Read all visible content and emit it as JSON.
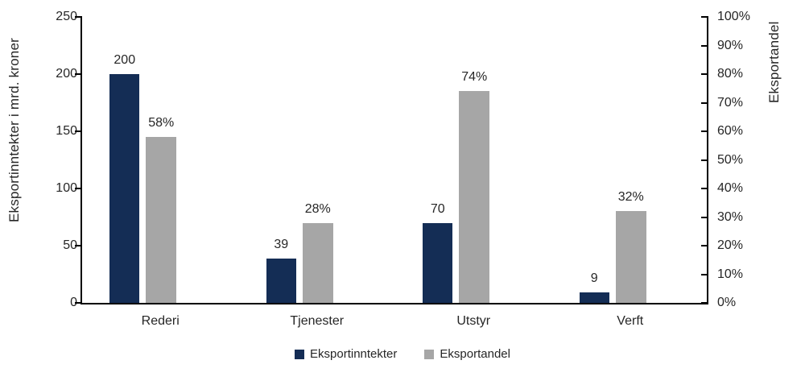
{
  "chart_data": {
    "type": "bar",
    "title": "",
    "categories": [
      "Rederi",
      "Tjenester",
      "Utstyr",
      "Verft"
    ],
    "series": [
      {
        "name": "Eksportinntekter",
        "axis": "left",
        "color": "#142d55",
        "values": [
          200,
          39,
          70,
          9
        ],
        "data_labels": [
          "200",
          "39",
          "70",
          "9"
        ]
      },
      {
        "name": "Eksportandel",
        "axis": "right",
        "color": "#a6a6a6",
        "values": [
          58,
          28,
          74,
          32
        ],
        "data_labels": [
          "58%",
          "28%",
          "74%",
          "32%"
        ]
      }
    ],
    "left_axis": {
      "title": "Eksportinntekter i mrd. kroner",
      "min": 0,
      "max": 250,
      "tick_labels": [
        "250",
        "200",
        "150",
        "100",
        "50",
        "0"
      ]
    },
    "right_axis": {
      "title": "Eksportandel",
      "min": 0,
      "max": 100,
      "tick_labels": [
        "100%",
        "90%",
        "80%",
        "70%",
        "60%",
        "50%",
        "40%",
        "30%",
        "20%",
        "10%",
        "0%"
      ]
    },
    "legend": {
      "position": "bottom",
      "entries": [
        {
          "label": "Eksportinntekter",
          "color": "#142d55"
        },
        {
          "label": "Eksportandel",
          "color": "#a6a6a6"
        }
      ]
    },
    "grid": false,
    "background": "#ffffff"
  }
}
